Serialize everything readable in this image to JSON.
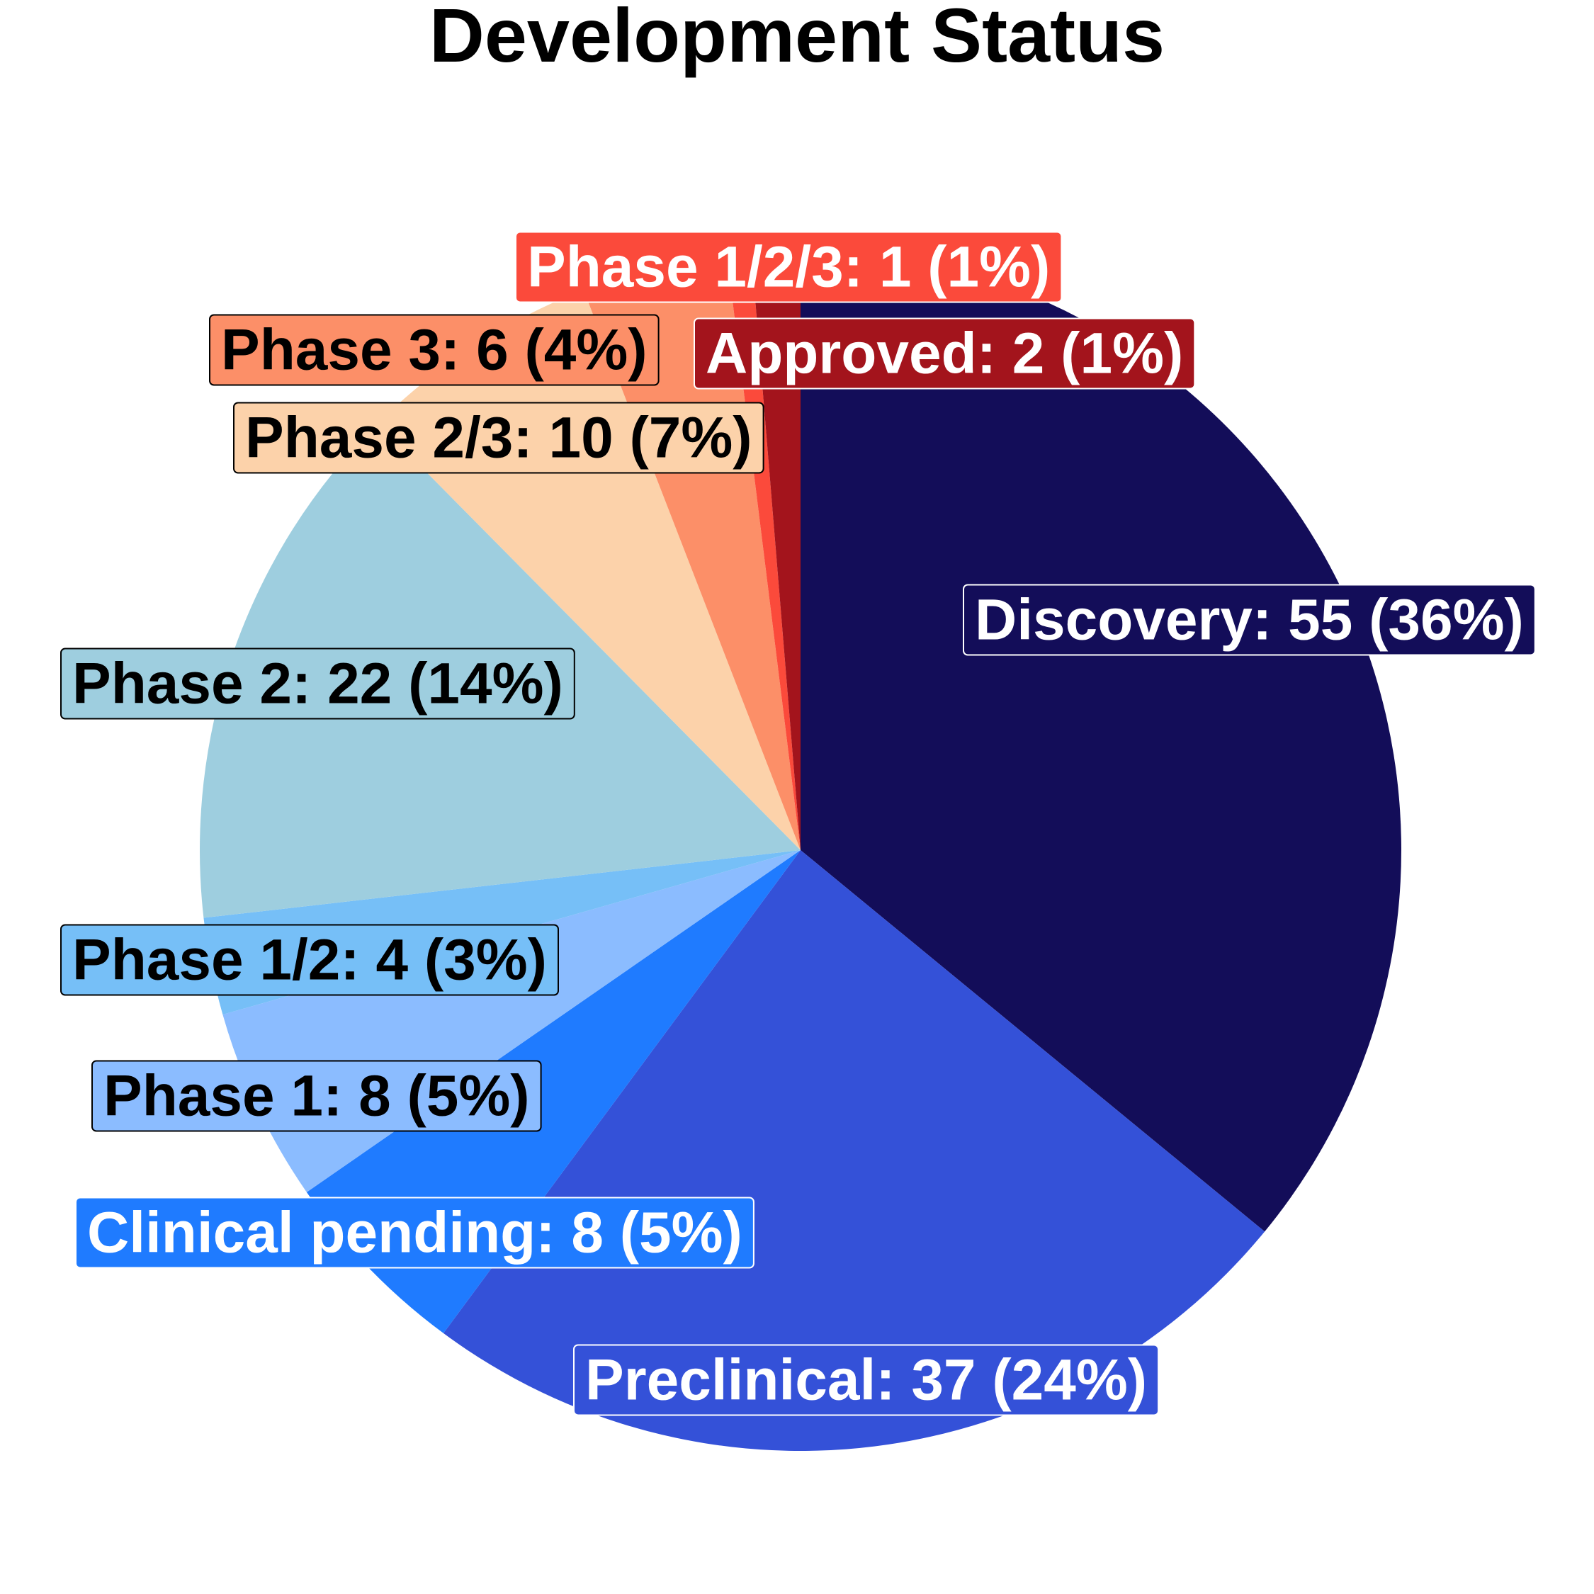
{
  "chart_data": {
    "type": "pie",
    "title": "Development Status",
    "start_angle_deg": 90,
    "direction": "clockwise",
    "slices": [
      {
        "label": "Discovery",
        "value": 55,
        "percent": "36%",
        "text": "Discovery: 55 (36%)",
        "color": "#130d59",
        "label_text_color": "#ffffff"
      },
      {
        "label": "Preclinical",
        "value": 37,
        "percent": "24%",
        "text": "Preclinical: 37 (24%)",
        "color": "#3451d8",
        "label_text_color": "#ffffff"
      },
      {
        "label": "Clinical pending",
        "value": 8,
        "percent": "5%",
        "text": "Clinical pending: 8 (5%)",
        "color": "#1f7bff",
        "label_text_color": "#ffffff"
      },
      {
        "label": "Phase 1",
        "value": 8,
        "percent": "5%",
        "text": "Phase 1: 8 (5%)",
        "color": "#8bbcff",
        "label_text_color": "#000000"
      },
      {
        "label": "Phase 1/2",
        "value": 4,
        "percent": "3%",
        "text": "Phase 1/2: 4 (3%)",
        "color": "#76bff7",
        "label_text_color": "#000000"
      },
      {
        "label": "Phase 2",
        "value": 22,
        "percent": "14%",
        "text": "Phase 2: 22 (14%)",
        "color": "#9ecedf",
        "label_text_color": "#000000"
      },
      {
        "label": "Phase 2/3",
        "value": 10,
        "percent": "7%",
        "text": "Phase 2/3: 10 (7%)",
        "color": "#fcd2aa",
        "label_text_color": "#000000"
      },
      {
        "label": "Phase 3",
        "value": 6,
        "percent": "4%",
        "text": "Phase 3: 6 (4%)",
        "color": "#fc8f68",
        "label_text_color": "#000000"
      },
      {
        "label": "Phase 1/2/3",
        "value": 1,
        "percent": "1%",
        "text": "Phase 1/2/3: 1 (1%)",
        "color": "#fb4a3b",
        "label_text_color": "#ffffff"
      },
      {
        "label": "Approved",
        "value": 2,
        "percent": "1%",
        "text": "Approved: 2 (1%)",
        "color": "#a3141c",
        "label_text_color": "#ffffff"
      }
    ]
  }
}
